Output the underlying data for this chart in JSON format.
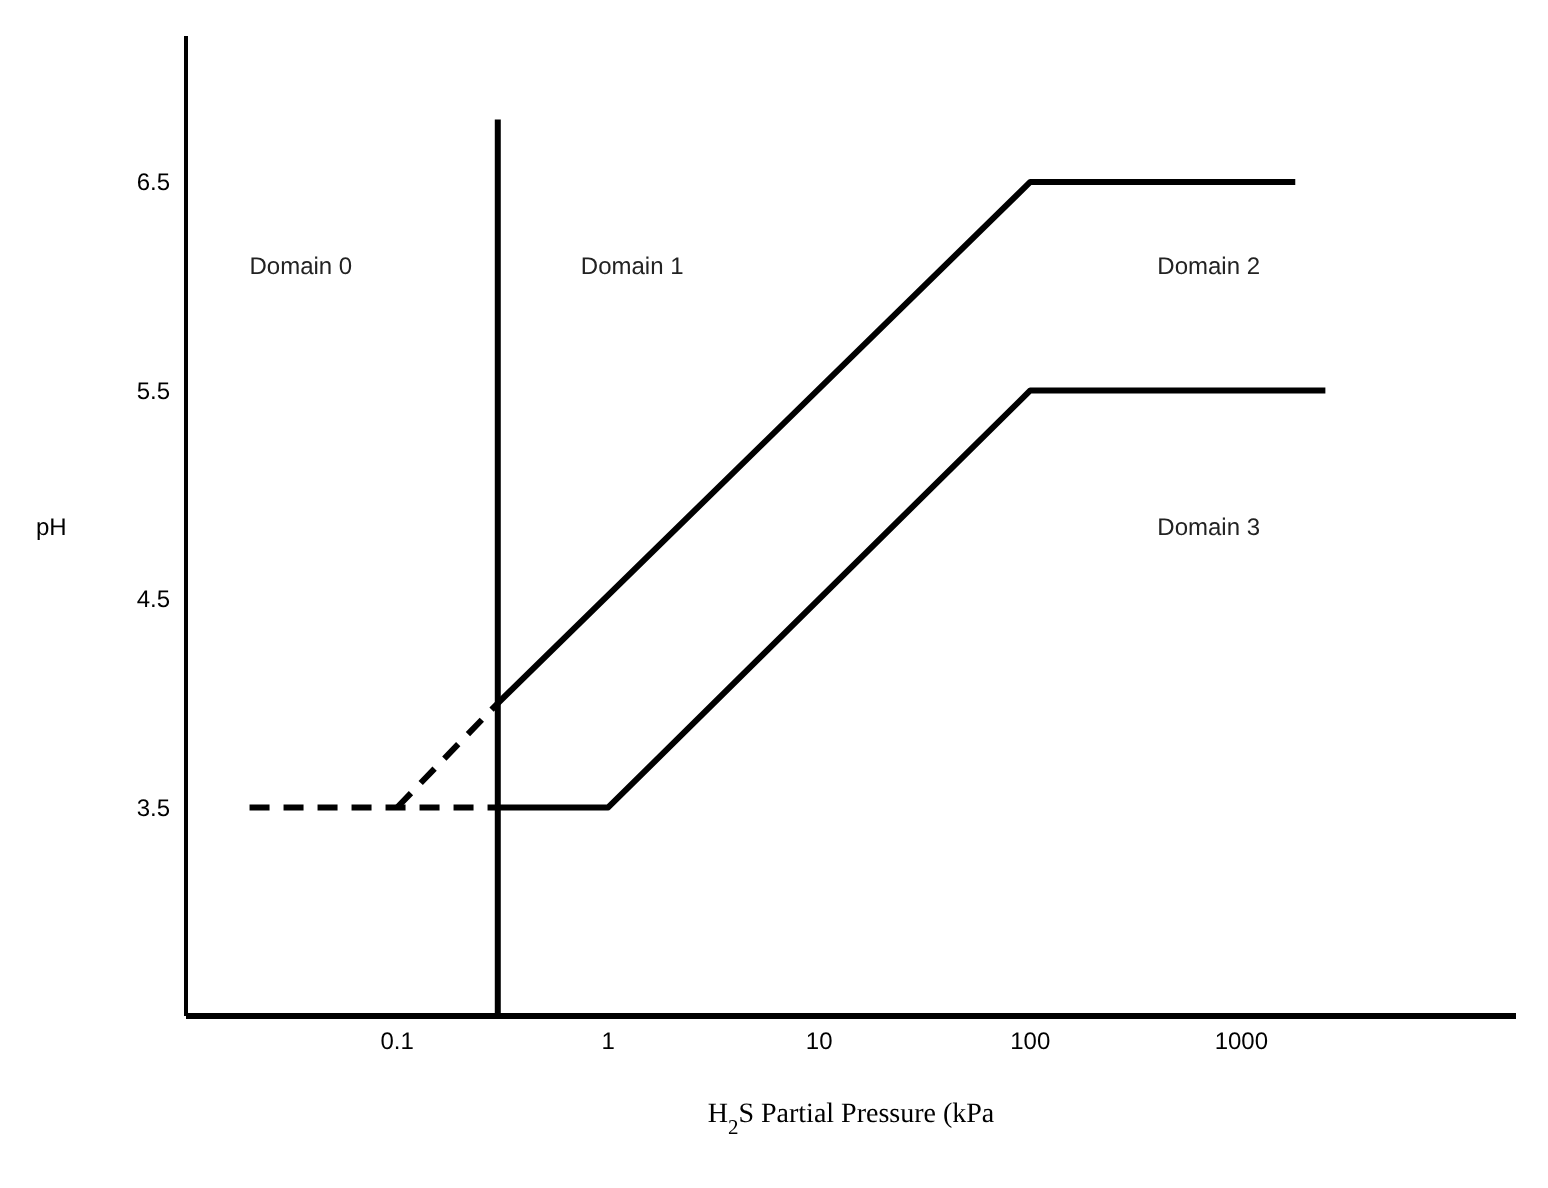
{
  "chart_data": {
    "type": "line",
    "xlabel": "H$_{2}$S Partial Pressure (kPa",
    "ylabel": "pH",
    "log": "x",
    "xlim": [
      0.01,
      20000
    ],
    "xticks": [
      0.1,
      1,
      10,
      100,
      1000
    ],
    "ylim": [
      2.5,
      7.2
    ],
    "yticks": [
      3.5,
      4.5,
      5.5,
      6.5
    ],
    "series": [
      {
        "color": "#000000",
        "line_style": "dashed",
        "x": [
          0.1,
          0.3
        ],
        "values": [
          3.5,
          4.0
        ]
      },
      {
        "color": "#000000",
        "line_style": "solid",
        "x": [
          0.3,
          100,
          1800
        ],
        "values": [
          4.0,
          6.5,
          6.5
        ]
      },
      {
        "color": "#000000",
        "line_style": "dashed",
        "x": [
          0.02,
          0.3
        ],
        "values": [
          3.5,
          3.5
        ]
      },
      {
        "color": "#000000",
        "line_style": "solid",
        "x": [
          0.3,
          1,
          100,
          2500
        ],
        "values": [
          3.5,
          3.5,
          5.5,
          5.5
        ]
      },
      {
        "color": "#000000",
        "line_style": "solid",
        "x": [
          0.3,
          0.3
        ],
        "values": [
          2.5,
          6.8
        ]
      }
    ],
    "annotations": [
      "Domain 0",
      "Domain 1",
      "Domain 2",
      "Domain 3"
    ]
  }
}
